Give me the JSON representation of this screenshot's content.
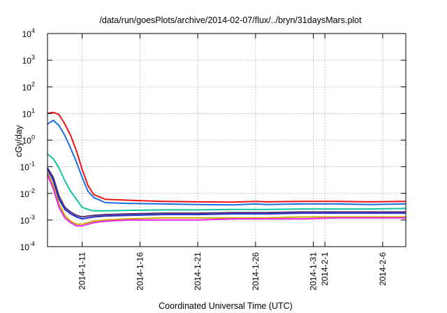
{
  "chart_data": {
    "type": "line",
    "title": "/data/run/goesPlots/archive/2014-02-07/flux/../bryn/31daysMars.plot",
    "xlabel": "Coordinated Universal Time (UTC)",
    "ylabel": "cGy/day",
    "y_scale": "log",
    "ylim": [
      0.0001,
      10000
    ],
    "y_ticks": [
      {
        "base": "10",
        "exp": "-4",
        "value": 0.0001
      },
      {
        "base": "10",
        "exp": "-3",
        "value": 0.001
      },
      {
        "base": "10",
        "exp": "-2",
        "value": 0.01
      },
      {
        "base": "10",
        "exp": "-1",
        "value": 0.1
      },
      {
        "base": "10",
        "exp": "0",
        "value": 1
      },
      {
        "base": "10",
        "exp": "1",
        "value": 10
      },
      {
        "base": "10",
        "exp": "2",
        "value": 100
      },
      {
        "base": "10",
        "exp": "3",
        "value": 1000
      },
      {
        "base": "10",
        "exp": "4",
        "value": 10000
      }
    ],
    "xlim": [
      "2014-01-08",
      "2014-02-08"
    ],
    "x_ticks": [
      {
        "label": "2014-1-11",
        "date": "2014-01-11"
      },
      {
        "label": "2014-1-16",
        "date": "2014-01-16"
      },
      {
        "label": "2014-1-21",
        "date": "2014-01-21"
      },
      {
        "label": "2014-1-26",
        "date": "2014-01-26"
      },
      {
        "label": "2014-1-31",
        "date": "2014-01-31"
      },
      {
        "label": "2014-2-1",
        "date": "2014-02-01"
      },
      {
        "label": "2014-2-6",
        "date": "2014-02-06"
      }
    ],
    "grid": true,
    "legend": "none",
    "series": [
      {
        "color": "#ee1111",
        "x": [
          "2014-01-08",
          "2014-01-08T12:00",
          "2014-01-09",
          "2014-01-09T12:00",
          "2014-01-10",
          "2014-01-10T12:00",
          "2014-01-11",
          "2014-01-11T12:00",
          "2014-01-12",
          "2014-01-13",
          "2014-01-15",
          "2014-01-18",
          "2014-01-21",
          "2014-01-24",
          "2014-01-26",
          "2014-01-27",
          "2014-01-30",
          "2014-02-02",
          "2014-02-05",
          "2014-02-08"
        ],
        "y": [
          10,
          11,
          9,
          4,
          1.5,
          0.4,
          0.08,
          0.02,
          0.009,
          0.006,
          0.0055,
          0.005,
          0.0048,
          0.0047,
          0.005,
          0.0048,
          0.005,
          0.005,
          0.0048,
          0.005
        ]
      },
      {
        "color": "#1a6ee0",
        "x": [
          "2014-01-08",
          "2014-01-08T12:00",
          "2014-01-09",
          "2014-01-09T12:00",
          "2014-01-10",
          "2014-01-10T12:00",
          "2014-01-11",
          "2014-01-11T12:00",
          "2014-01-12",
          "2014-01-13",
          "2014-01-15",
          "2014-01-18",
          "2014-01-21",
          "2014-01-24",
          "2014-01-26",
          "2014-01-27",
          "2014-01-30",
          "2014-02-02",
          "2014-02-05",
          "2014-02-08"
        ],
        "y": [
          4,
          5.5,
          3.5,
          1.5,
          0.5,
          0.15,
          0.04,
          0.012,
          0.007,
          0.0045,
          0.0042,
          0.004,
          0.0038,
          0.0037,
          0.004,
          0.0038,
          0.004,
          0.004,
          0.0038,
          0.004
        ]
      },
      {
        "color": "#11c4a0",
        "x": [
          "2014-01-08",
          "2014-01-08T12:00",
          "2014-01-09",
          "2014-01-09T12:00",
          "2014-01-10",
          "2014-01-10T12:00",
          "2014-01-11",
          "2014-01-11T12:00",
          "2014-01-12",
          "2014-01-13",
          "2014-01-15",
          "2014-01-18",
          "2014-01-21",
          "2014-01-24",
          "2014-01-26",
          "2014-01-27",
          "2014-01-30",
          "2014-02-02",
          "2014-02-05",
          "2014-02-08"
        ],
        "y": [
          0.3,
          0.2,
          0.09,
          0.03,
          0.012,
          0.006,
          0.003,
          0.0025,
          0.0022,
          0.0022,
          0.0023,
          0.0024,
          0.0024,
          0.0025,
          0.0025,
          0.0025,
          0.0026,
          0.0026,
          0.0026,
          0.0027
        ]
      },
      {
        "color": "#5a2d6e",
        "x": [
          "2014-01-08",
          "2014-01-08T12:00",
          "2014-01-09",
          "2014-01-09T12:00",
          "2014-01-10",
          "2014-01-10T12:00",
          "2014-01-11",
          "2014-01-11T12:00",
          "2014-01-12",
          "2014-01-13",
          "2014-01-15",
          "2014-01-18",
          "2014-01-21",
          "2014-01-24",
          "2014-01-26",
          "2014-01-27",
          "2014-01-30",
          "2014-02-02",
          "2014-02-05",
          "2014-02-08"
        ],
        "y": [
          0.09,
          0.04,
          0.008,
          0.003,
          0.002,
          0.0015,
          0.0013,
          0.0014,
          0.0015,
          0.0016,
          0.0017,
          0.0018,
          0.0018,
          0.0019,
          0.0019,
          0.0019,
          0.002,
          0.002,
          0.002,
          0.002
        ]
      },
      {
        "color": "#2233cc",
        "x": [
          "2014-01-08",
          "2014-01-08T12:00",
          "2014-01-09",
          "2014-01-09T12:00",
          "2014-01-10",
          "2014-01-10T12:00",
          "2014-01-11",
          "2014-01-11T12:00",
          "2014-01-12",
          "2014-01-13",
          "2014-01-15",
          "2014-01-18",
          "2014-01-21",
          "2014-01-24",
          "2014-01-26",
          "2014-01-27",
          "2014-01-30",
          "2014-02-02",
          "2014-02-05",
          "2014-02-08"
        ],
        "y": [
          0.08,
          0.03,
          0.006,
          0.0025,
          0.0017,
          0.0013,
          0.0011,
          0.0012,
          0.0013,
          0.0014,
          0.0015,
          0.0016,
          0.0016,
          0.0017,
          0.0017,
          0.0017,
          0.0018,
          0.0018,
          0.0018,
          0.0018
        ]
      },
      {
        "color": "#c8b000",
        "x": [
          "2014-01-08",
          "2014-01-08T12:00",
          "2014-01-09",
          "2014-01-09T12:00",
          "2014-01-10",
          "2014-01-10T12:00",
          "2014-01-11",
          "2014-01-11T12:00",
          "2014-01-12",
          "2014-01-13",
          "2014-01-15",
          "2014-01-18",
          "2014-01-21",
          "2014-01-24",
          "2014-01-26",
          "2014-01-27",
          "2014-01-30",
          "2014-02-02",
          "2014-02-05",
          "2014-02-08"
        ],
        "y": [
          0.06,
          0.02,
          0.004,
          0.0015,
          0.0009,
          0.0007,
          0.0007,
          0.0008,
          0.0009,
          0.001,
          0.0011,
          0.0012,
          0.0012,
          0.0012,
          0.0012,
          0.0012,
          0.0013,
          0.0013,
          0.0013,
          0.0013
        ]
      },
      {
        "color": "#ee22ee",
        "x": [
          "2014-01-08",
          "2014-01-08T12:00",
          "2014-01-09",
          "2014-01-09T12:00",
          "2014-01-10",
          "2014-01-10T12:00",
          "2014-01-11",
          "2014-01-11T12:00",
          "2014-01-12",
          "2014-01-13",
          "2014-01-15",
          "2014-01-18",
          "2014-01-21",
          "2014-01-24",
          "2014-01-26",
          "2014-01-27",
          "2014-01-30",
          "2014-02-02",
          "2014-02-05",
          "2014-02-08"
        ],
        "y": [
          0.05,
          0.015,
          0.003,
          0.0012,
          0.0008,
          0.0006,
          0.0006,
          0.0007,
          0.0008,
          0.0009,
          0.001,
          0.001,
          0.001,
          0.0011,
          0.0011,
          0.0011,
          0.0011,
          0.0012,
          0.0012,
          0.0012
        ]
      }
    ]
  }
}
